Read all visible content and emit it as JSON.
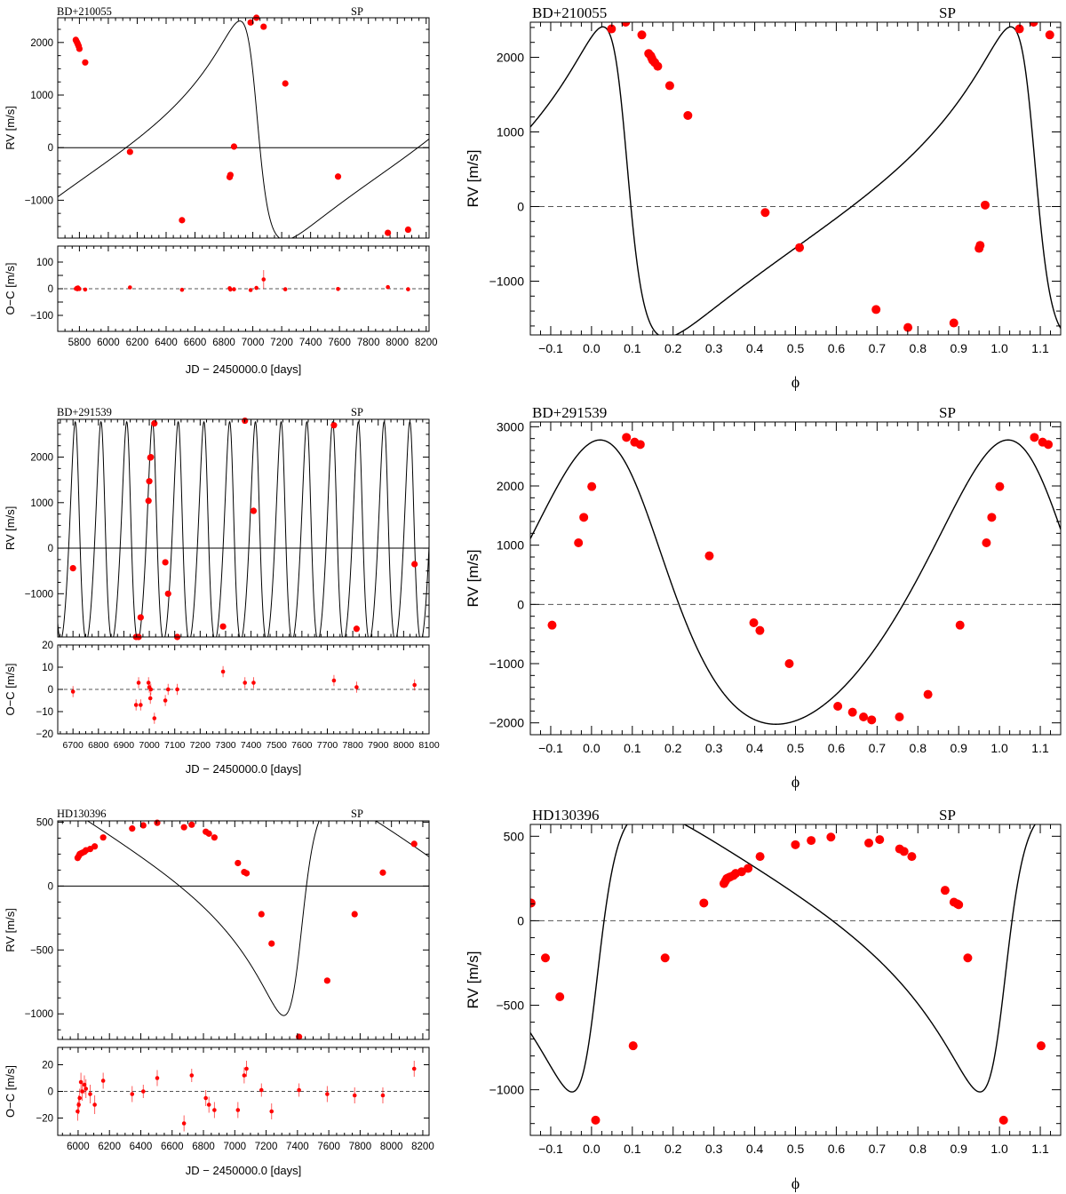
{
  "chart_data": [
    {
      "type": "scatter",
      "panel": "time",
      "star": "BD+210055",
      "method": "SP",
      "xlabel": "JD − 2450000.0 [days]",
      "ylabel": "RV [m/s]",
      "reslabel": "O−C [m/s]",
      "xlim": [
        5650,
        8220
      ],
      "ylim": [
        -1720,
        2470
      ],
      "reslim": [
        -160,
        160
      ],
      "xticks": [
        5800,
        6000,
        6200,
        6400,
        6600,
        6800,
        7000,
        7200,
        7400,
        7600,
        7800,
        8000,
        8200
      ],
      "yticks": [
        -1000,
        0,
        1000,
        2000
      ],
      "resticks": [
        -100,
        -50,
        0,
        50,
        100
      ],
      "reslabels": [
        -100,
        0,
        100
      ],
      "orbit": {
        "P": 2020,
        "T": 7020,
        "K": 2080,
        "e": 0.59,
        "w": 1.3,
        "gamma": 0
      },
      "x": [
        5775,
        5780,
        5786,
        5790,
        5795,
        5800,
        5840,
        6150,
        6510,
        6840,
        6845,
        6870,
        6985,
        7025,
        7075,
        7225,
        7590,
        7935,
        8075
      ],
      "y": [
        2050,
        2020,
        1990,
        1960,
        1930,
        1880,
        1620,
        -80,
        -1380,
        -560,
        -520,
        20,
        2380,
        2470,
        2300,
        1220,
        -550,
        -1620,
        -1560
      ],
      "residuals": [
        0,
        3,
        -2,
        5,
        2,
        -1,
        -3,
        5,
        -4,
        2,
        -3,
        -2,
        -5,
        3,
        35,
        -2,
        -1,
        6,
        -2
      ],
      "res_err": [
        6,
        5,
        5,
        5,
        5,
        5,
        5,
        5,
        5,
        5,
        5,
        5,
        5,
        6,
        35,
        5,
        5,
        5,
        5
      ]
    },
    {
      "type": "line",
      "panel": "phase",
      "star": "BD+210055",
      "method": "SP",
      "xlabel": "ϕ",
      "ylabel": "RV [m/s]",
      "xlim": [
        -0.15,
        1.15
      ],
      "ylim": [
        -1720,
        2470
      ],
      "xticks": [
        -0.1,
        0.0,
        0.1,
        0.2,
        0.3,
        0.4,
        0.5,
        0.6,
        0.7,
        0.8,
        0.9,
        1.0,
        1.1
      ],
      "yticks": [
        -1000,
        0,
        1000,
        2000
      ],
      "orbit": {
        "P": 1,
        "T": 0.082,
        "K": 2080,
        "e": 0.59,
        "w": 1.3,
        "gamma": 0
      },
      "phase": [
        0.0489,
        0.0836,
        0.1233,
        0.1401,
        0.145,
        0.1475,
        0.15,
        0.155,
        0.1623,
        0.1917,
        0.2362,
        0.4257,
        0.5099,
        0.6975,
        0.7756,
        0.8881,
        0.95,
        0.9525,
        0.9649,
        1.0489,
        1.0836,
        1.1233
      ],
      "y": [
        2380,
        2470,
        2300,
        2050,
        2020,
        1990,
        1960,
        1930,
        1880,
        1620,
        1220,
        -80,
        -550,
        -1380,
        -1620,
        -1560,
        -560,
        -520,
        20,
        2380,
        2470,
        2300
      ]
    },
    {
      "type": "scatter",
      "panel": "time",
      "star": "BD+291539",
      "method": "SP",
      "xlabel": "JD − 2450000.0 [days]",
      "ylabel": "RV [m/s]",
      "reslabel": "O−C [m/s]",
      "xlim": [
        6640,
        8100
      ],
      "ylim": [
        -1950,
        2830
      ],
      "reslim": [
        -20,
        20
      ],
      "xticks": [
        6700,
        6800,
        6900,
        7000,
        7100,
        7200,
        7300,
        7400,
        7500,
        7600,
        7700,
        7800,
        7900,
        8000,
        8100
      ],
      "yticks": [
        -1000,
        0,
        1000,
        2000
      ],
      "resticks": [
        -20,
        -10,
        0,
        10,
        20
      ],
      "reslabels": [
        -20,
        -10,
        0,
        10,
        20
      ],
      "orbit": {
        "P": 101.2,
        "T": 7019,
        "K": 2400,
        "e": 0.19,
        "w": 0.6,
        "gamma": 0
      },
      "x": [
        6700,
        6948,
        6958,
        6966,
        6997,
        7000,
        7004,
        7006,
        7020,
        7063,
        7074,
        7110,
        7290,
        7376,
        7410,
        7726,
        7815,
        8043
      ],
      "y": [
        -440,
        -1950,
        -1950,
        -1520,
        1040,
        1470,
        1990,
        2000,
        2740,
        -310,
        -1000,
        -1950,
        -1720,
        2800,
        820,
        2700,
        -1770,
        -350
      ],
      "residuals": [
        -1,
        -7,
        3,
        -7,
        3,
        1,
        -4,
        0,
        -13,
        -5,
        0,
        0,
        8,
        3,
        3,
        4,
        1,
        2
      ],
      "res_err": [
        2.5,
        2.5,
        2.5,
        2.5,
        2.5,
        2.5,
        2.5,
        2.5,
        2.5,
        2.5,
        2.5,
        2.5,
        2.5,
        2.5,
        2.5,
        2.5,
        2.5,
        2.5
      ]
    },
    {
      "type": "line",
      "panel": "phase",
      "star": "BD+291539",
      "method": "SP",
      "xlabel": "ϕ",
      "ylabel": "RV [m/s]",
      "xlim": [
        -0.15,
        1.15
      ],
      "ylim": [
        -2200,
        3080
      ],
      "xticks": [
        -0.1,
        0.0,
        0.1,
        0.2,
        0.3,
        0.4,
        0.5,
        0.6,
        0.7,
        0.8,
        0.9,
        1.0,
        1.1
      ],
      "yticks": [
        -2000,
        -1000,
        0,
        1000,
        2000,
        3000
      ],
      "orbit": {
        "P": 1,
        "T": 0.086,
        "K": 2400,
        "e": 0.19,
        "w": 0.6,
        "gamma": 0
      },
      "phase": [
        -0.0967,
        -0.032,
        -0.019,
        0.0006,
        0.0856,
        0.1056,
        0.1196,
        0.2887,
        0.3977,
        0.4127,
        0.4847,
        0.6037,
        0.6397,
        0.6667,
        0.6867,
        0.7547,
        0.8247,
        0.9033,
        0.968,
        0.981,
        1.0006,
        1.0856,
        1.1056,
        1.1196
      ],
      "y": [
        -350,
        1040,
        1470,
        1990,
        2820,
        2740,
        2700,
        820,
        -310,
        -440,
        -1000,
        -1720,
        -1820,
        -1900,
        -1950,
        -1900,
        -1520,
        -350,
        1040,
        1470,
        1990,
        2820,
        2740,
        2700
      ]
    },
    {
      "type": "scatter",
      "panel": "time",
      "star": "HD130396",
      "method": "SP",
      "xlabel": "JD − 2450000.0 [days]",
      "ylabel": "RV [m/s]",
      "reslabel": "O−C [m/s]",
      "xlim": [
        5870,
        8240
      ],
      "ylim": [
        -1200,
        510
      ],
      "reslim": [
        -33,
        33
      ],
      "xticks": [
        6000,
        6200,
        6400,
        6600,
        6800,
        7000,
        7200,
        7400,
        7600,
        7800,
        8000,
        8200
      ],
      "yticks": [
        -1000,
        -500,
        0,
        500
      ],
      "resticks": [
        -20,
        0,
        20
      ],
      "reslabels": [
        -20,
        0,
        20
      ],
      "orbit": {
        "P": 1840,
        "T": 7410,
        "K": 830,
        "e": 0.55,
        "w": 4.3,
        "gamma": 0
      },
      "x": [
        5997,
        6004,
        6010,
        6018,
        6026,
        6040,
        6050,
        6077,
        6106,
        6160,
        6345,
        6416,
        6505,
        6676,
        6725,
        6815,
        6835,
        6870,
        7020,
        7060,
        7075,
        7170,
        7235,
        7410,
        7590,
        7765,
        7945,
        8145
      ],
      "y": [
        220,
        235,
        250,
        255,
        260,
        268,
        280,
        290,
        310,
        380,
        450,
        475,
        495,
        460,
        480,
        425,
        410,
        380,
        180,
        110,
        100,
        -220,
        -450,
        -1180,
        -740,
        -220,
        105,
        330
      ],
      "residuals": [
        -15,
        -10,
        -5,
        7,
        0,
        5,
        2,
        -2,
        -10,
        8,
        -2,
        0,
        10,
        -24,
        12,
        -5,
        -10,
        -14,
        -14,
        12,
        17,
        1,
        -15,
        1,
        -2,
        -3,
        -3,
        17
      ],
      "res_err": [
        7,
        7,
        7,
        7,
        7,
        7,
        7,
        7,
        7,
        6,
        6,
        5,
        6,
        6,
        5,
        6,
        6,
        6,
        6,
        6,
        6,
        5,
        6,
        5,
        6,
        6,
        6,
        6
      ]
    },
    {
      "type": "line",
      "panel": "phase",
      "star": "HD130396",
      "method": "SP",
      "xlabel": "ϕ",
      "ylabel": "RV [m/s]",
      "xlim": [
        -0.15,
        1.15
      ],
      "ylim": [
        -1270,
        570
      ],
      "xticks": [
        -0.1,
        0.0,
        0.1,
        0.2,
        0.3,
        0.4,
        0.5,
        0.6,
        0.7,
        0.8,
        0.9,
        1.0,
        1.1
      ],
      "yticks": [
        -1000,
        -500,
        0,
        500
      ],
      "orbit": {
        "P": 1,
        "T": 0.005,
        "K": 830,
        "e": 0.55,
        "w": 4.3,
        "gamma": 0
      },
      "phase": [
        -0.1481,
        -0.113,
        -0.0777,
        0.01,
        0.102,
        0.1803,
        0.2753,
        0.3246,
        0.3283,
        0.3316,
        0.3359,
        0.3403,
        0.3479,
        0.3533,
        0.368,
        0.3838,
        0.4131,
        0.4998,
        0.5384,
        0.5868,
        0.6797,
        0.7063,
        0.7552,
        0.7661,
        0.7851,
        0.8667,
        0.8884,
        0.8966,
        0.9,
        0.9223,
        1.01,
        1.102
      ],
      "y": [
        105,
        -220,
        -450,
        -1180,
        -740,
        -220,
        105,
        220,
        235,
        250,
        255,
        260,
        268,
        280,
        290,
        310,
        380,
        450,
        475,
        495,
        460,
        480,
        425,
        410,
        380,
        180,
        110,
        100,
        95,
        -220,
        -1180,
        -740
      ]
    }
  ]
}
